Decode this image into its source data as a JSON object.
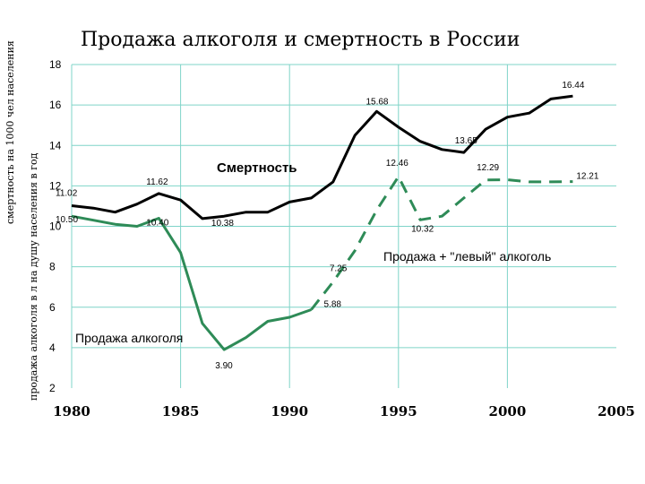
{
  "chart_data": {
    "type": "line",
    "title": "Продажа алкоголя и смертность в России",
    "ylabel_upper": "смертность на 1000 чел населения",
    "ylabel_lower": "продажа алкоголя в л на душу населения в год",
    "xlim": [
      1980,
      2005
    ],
    "ylim": [
      2,
      18
    ],
    "x_ticks": [
      "1980",
      "1985",
      "1990",
      "1995",
      "2000",
      "2005"
    ],
    "y_ticks": [
      "2",
      "4",
      "6",
      "8",
      "10",
      "12",
      "14",
      "16",
      "18"
    ],
    "grid": true,
    "series": [
      {
        "id": "mortality",
        "color": "#000000",
        "dashed": false,
        "x": [
          1980,
          1981,
          1982,
          1983,
          1984,
          1985,
          1986,
          1987,
          1988,
          1989,
          1990,
          1991,
          1992,
          1993,
          1994,
          1995,
          1996,
          1997,
          1998,
          1999,
          2000,
          2001,
          2002,
          2003
        ],
        "y": [
          11.02,
          10.9,
          10.7,
          11.1,
          11.62,
          11.3,
          10.38,
          10.5,
          10.7,
          10.7,
          11.2,
          11.4,
          12.2,
          14.5,
          15.68,
          14.9,
          14.2,
          13.8,
          13.65,
          14.8,
          15.4,
          15.6,
          16.3,
          16.44
        ]
      },
      {
        "id": "sales",
        "color": "#2e8b57",
        "dashed": false,
        "x": [
          1980,
          1981,
          1982,
          1983,
          1984,
          1985,
          1986,
          1987,
          1988,
          1989,
          1990,
          1991
        ],
        "y": [
          10.5,
          10.3,
          10.1,
          10.0,
          10.4,
          8.7,
          5.2,
          3.9,
          4.5,
          5.3,
          5.5,
          5.88
        ]
      },
      {
        "id": "sales_illegal",
        "color": "#2e8b57",
        "dashed": true,
        "x": [
          1991,
          1992,
          1993,
          1994,
          1995,
          1996,
          1997,
          1998,
          1999,
          2000,
          2001,
          2002,
          2003
        ],
        "y": [
          5.88,
          7.25,
          8.8,
          10.8,
          12.46,
          10.32,
          10.5,
          11.4,
          12.29,
          12.3,
          12.2,
          12.2,
          12.21
        ]
      }
    ],
    "data_labels": [
      {
        "text": "11.02",
        "x": 1980,
        "y": 11.02
      },
      {
        "text": "11.62",
        "x": 1984,
        "y": 11.62
      },
      {
        "text": "10.40",
        "x": 1984,
        "y": 10.4
      },
      {
        "text": "10.50",
        "x": 1980,
        "y": 10.5
      },
      {
        "text": "10.38",
        "x": 1986,
        "y": 10.38
      },
      {
        "text": "3.90",
        "x": 1987,
        "y": 3.9
      },
      {
        "text": "5.88",
        "x": 1991,
        "y": 5.88
      },
      {
        "text": "7.25",
        "x": 1992,
        "y": 7.25
      },
      {
        "text": "12.46",
        "x": 1995,
        "y": 12.46
      },
      {
        "text": "10.32",
        "x": 1996,
        "y": 10.32
      },
      {
        "text": "15.68",
        "x": 1994,
        "y": 15.68
      },
      {
        "text": "13.65",
        "x": 1998,
        "y": 13.65
      },
      {
        "text": "12.29",
        "x": 1999,
        "y": 12.29
      },
      {
        "text": "12.21",
        "x": 2003,
        "y": 12.21
      },
      {
        "text": "16.44",
        "x": 2003,
        "y": 16.44
      }
    ],
    "annotations": {
      "mortality": "Смертность",
      "sales": "Продажа алкоголя",
      "sales_illegal": "Продажа + \"левый\" алкоголь"
    }
  }
}
